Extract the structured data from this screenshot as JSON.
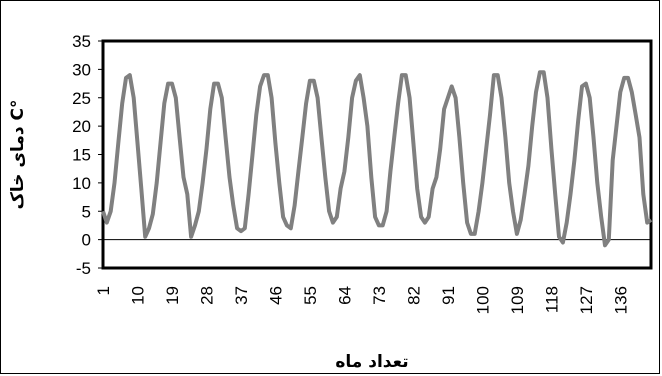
{
  "chart_data": {
    "type": "line",
    "title": "",
    "xlabel": "تعداد ماه",
    "ylabel": "دمای خاک C°",
    "ylim": [
      -5,
      35
    ],
    "yticks": [
      -5,
      0,
      5,
      10,
      15,
      20,
      25,
      30,
      35
    ],
    "xlim": [
      1,
      144
    ],
    "xticks": [
      1,
      10,
      19,
      28,
      37,
      46,
      55,
      64,
      73,
      82,
      91,
      100,
      109,
      118,
      127,
      136
    ],
    "grid": false,
    "colors": {
      "line": "#808080",
      "axis": "#000000"
    },
    "series": [
      {
        "values": [
          5,
          3,
          5,
          10,
          17,
          24,
          28.5,
          29,
          25,
          17,
          9,
          0.5,
          2,
          4.5,
          10,
          17,
          24,
          27.5,
          27.5,
          25,
          18,
          11,
          8,
          0.5,
          2.5,
          5,
          10,
          16,
          23,
          27.5,
          27.5,
          25,
          18,
          11,
          6,
          2,
          1.5,
          2,
          8,
          15,
          22,
          27,
          29,
          29,
          25,
          17,
          10,
          4,
          2.5,
          2,
          6,
          12,
          18,
          24,
          28,
          28,
          25,
          18,
          11,
          5,
          3,
          4,
          9,
          12,
          18,
          25,
          28,
          29,
          25,
          20,
          11,
          4,
          2.5,
          2.5,
          5,
          12,
          18,
          24,
          29,
          29,
          25,
          17,
          9,
          4,
          3,
          4,
          9,
          11,
          16,
          23,
          25,
          27,
          25,
          18,
          10,
          3,
          1,
          1,
          5,
          10,
          16,
          22,
          29,
          29,
          25,
          18,
          10,
          5,
          1,
          3.5,
          8,
          13,
          20,
          26,
          29.5,
          29.5,
          25,
          16,
          8,
          0.5,
          -0.5,
          3,
          8,
          14,
          21,
          27,
          27.5,
          25,
          18,
          10,
          4,
          -1,
          0,
          14,
          20,
          26,
          28.5,
          28.5,
          26,
          22,
          18,
          8,
          3,
          3.5
        ]
      }
    ]
  }
}
